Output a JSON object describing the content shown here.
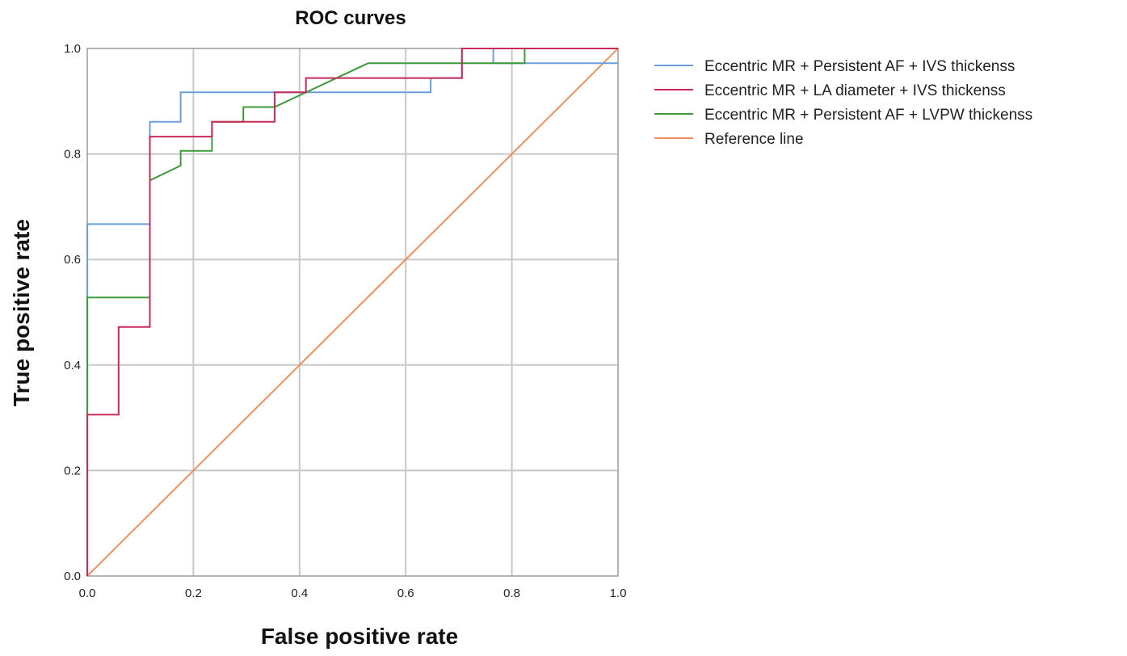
{
  "chart_data": {
    "type": "line",
    "title": "ROC curves",
    "xlabel": "False positive rate",
    "ylabel": "True positive rate",
    "xlim": [
      0,
      1
    ],
    "ylim": [
      0,
      1
    ],
    "x_ticks": [
      "0.0",
      "0.2",
      "0.4",
      "0.6",
      "0.8",
      "1.0"
    ],
    "y_ticks": [
      "0.0",
      "0.2",
      "0.4",
      "0.6",
      "0.8",
      "1.0"
    ],
    "grid": true,
    "legend_position": "right",
    "series": [
      {
        "name": "Eccentric MR + Persistent AF + IVS thickenss",
        "color": "#6a9fdb",
        "points": [
          [
            0,
            0
          ],
          [
            0,
            0.667
          ],
          [
            0.118,
            0.667
          ],
          [
            0.118,
            0.861
          ],
          [
            0.176,
            0.861
          ],
          [
            0.176,
            0.917
          ],
          [
            0.647,
            0.917
          ],
          [
            0.647,
            0.944
          ],
          [
            0.706,
            0.944
          ],
          [
            0.706,
            1.0
          ],
          [
            0.765,
            1.0
          ],
          [
            0.765,
            0.972
          ],
          [
            1.0,
            0.972
          ]
        ]
      },
      {
        "name": "Eccentric MR + LA diameter + IVS thickenss",
        "color": "#c8285a",
        "points": [
          [
            0,
            0
          ],
          [
            0,
            0.306
          ],
          [
            0.059,
            0.306
          ],
          [
            0.059,
            0.472
          ],
          [
            0.118,
            0.472
          ],
          [
            0.118,
            0.833
          ],
          [
            0.235,
            0.833
          ],
          [
            0.235,
            0.861
          ],
          [
            0.353,
            0.861
          ],
          [
            0.353,
            0.917
          ],
          [
            0.412,
            0.917
          ],
          [
            0.412,
            0.944
          ],
          [
            0.706,
            0.944
          ],
          [
            0.706,
            1.0
          ],
          [
            1.0,
            1.0
          ]
        ]
      },
      {
        "name": "Eccentric MR + Persistent AF + LVPW thickenss",
        "color": "#3f9a3c",
        "points": [
          [
            0,
            0
          ],
          [
            0,
            0.528
          ],
          [
            0.118,
            0.528
          ],
          [
            0.118,
            0.75
          ],
          [
            0.176,
            0.778
          ],
          [
            0.176,
            0.806
          ],
          [
            0.235,
            0.806
          ],
          [
            0.235,
            0.861
          ],
          [
            0.294,
            0.861
          ],
          [
            0.294,
            0.889
          ],
          [
            0.353,
            0.889
          ],
          [
            0.529,
            0.972
          ],
          [
            0.824,
            0.972
          ],
          [
            0.824,
            1.0
          ],
          [
            1.0,
            1.0
          ]
        ]
      },
      {
        "name": "Reference line",
        "color": "#f0905a",
        "points": [
          [
            0,
            0
          ],
          [
            1,
            1
          ]
        ]
      }
    ]
  }
}
